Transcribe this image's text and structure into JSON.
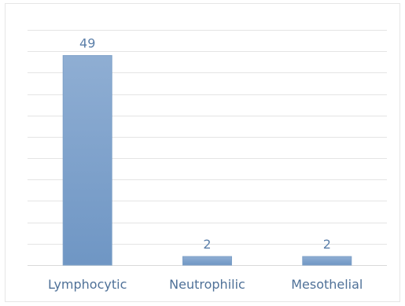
{
  "chart_data": {
    "type": "bar",
    "categories": [
      "Lymphocytic",
      "Neutrophilic",
      "Mesothelial"
    ],
    "values": [
      49,
      2,
      2
    ],
    "title": "",
    "xlabel": "",
    "ylabel": "",
    "ylim": [
      0,
      55
    ],
    "grid": true,
    "legend": "none",
    "data_labels": true,
    "colors": {
      "bar_top": "#8faed3",
      "bar_bottom": "#6f96c4",
      "label": "#5b7fa9",
      "tick": "#4f7198"
    }
  }
}
